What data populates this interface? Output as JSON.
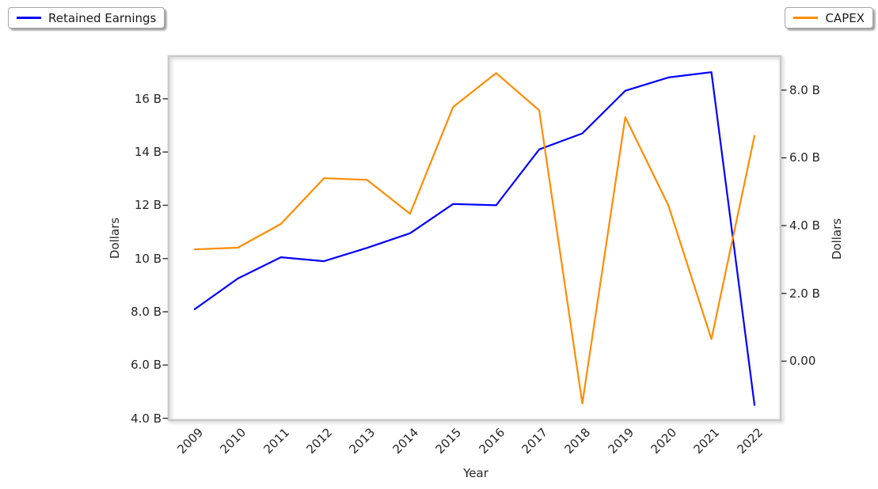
{
  "figure": {
    "background": "#ffffff",
    "legends": [
      {
        "label": "Retained Earnings",
        "color": "#0000ff",
        "position": "top-left"
      },
      {
        "label": "CAPEX",
        "color": "#ff8c00",
        "position": "top-right"
      }
    ]
  },
  "chart_data": {
    "type": "line",
    "title": "",
    "xlabel": "Year",
    "categories": [
      "2009",
      "2010",
      "2011",
      "2012",
      "2013",
      "2014",
      "2015",
      "2016",
      "2017",
      "2018",
      "2019",
      "2020",
      "2021",
      "2022"
    ],
    "series": [
      {
        "name": "Retained Earnings",
        "axis": "left",
        "color": "#0000ff",
        "unit": "B",
        "values": [
          8.1,
          9.25,
          10.05,
          9.9,
          10.4,
          10.95,
          12.05,
          12.0,
          14.1,
          14.7,
          16.3,
          16.8,
          17.0,
          4.5
        ]
      },
      {
        "name": "CAPEX",
        "axis": "right",
        "color": "#ff8c00",
        "unit": "B",
        "values": [
          3.3,
          3.35,
          4.05,
          5.4,
          5.35,
          4.35,
          7.5,
          8.5,
          7.4,
          -1.25,
          7.2,
          4.6,
          0.65,
          6.65
        ]
      }
    ],
    "left_axis": {
      "label": "Dollars",
      "ylim": [
        3.93,
        17.6
      ],
      "ticks": [
        {
          "value": 16,
          "label": "16 B"
        },
        {
          "value": 14,
          "label": "14 B"
        },
        {
          "value": 12,
          "label": "12 B"
        },
        {
          "value": 10,
          "label": "10 B"
        },
        {
          "value": 8,
          "label": "8.0 B"
        },
        {
          "value": 6,
          "label": "6.0 B"
        },
        {
          "value": 4,
          "label": "4.0 B"
        }
      ]
    },
    "right_axis": {
      "label": "Dollars",
      "ylim": [
        -1.74,
        9.0
      ],
      "ticks": [
        {
          "value": 8,
          "label": "8.0 B"
        },
        {
          "value": 6,
          "label": "6.0 B"
        },
        {
          "value": 4,
          "label": "4.0 B"
        },
        {
          "value": 2,
          "label": "2.0 B"
        },
        {
          "value": 0,
          "label": "0.00"
        }
      ]
    },
    "grid": false,
    "legend_position": "outside-top"
  }
}
